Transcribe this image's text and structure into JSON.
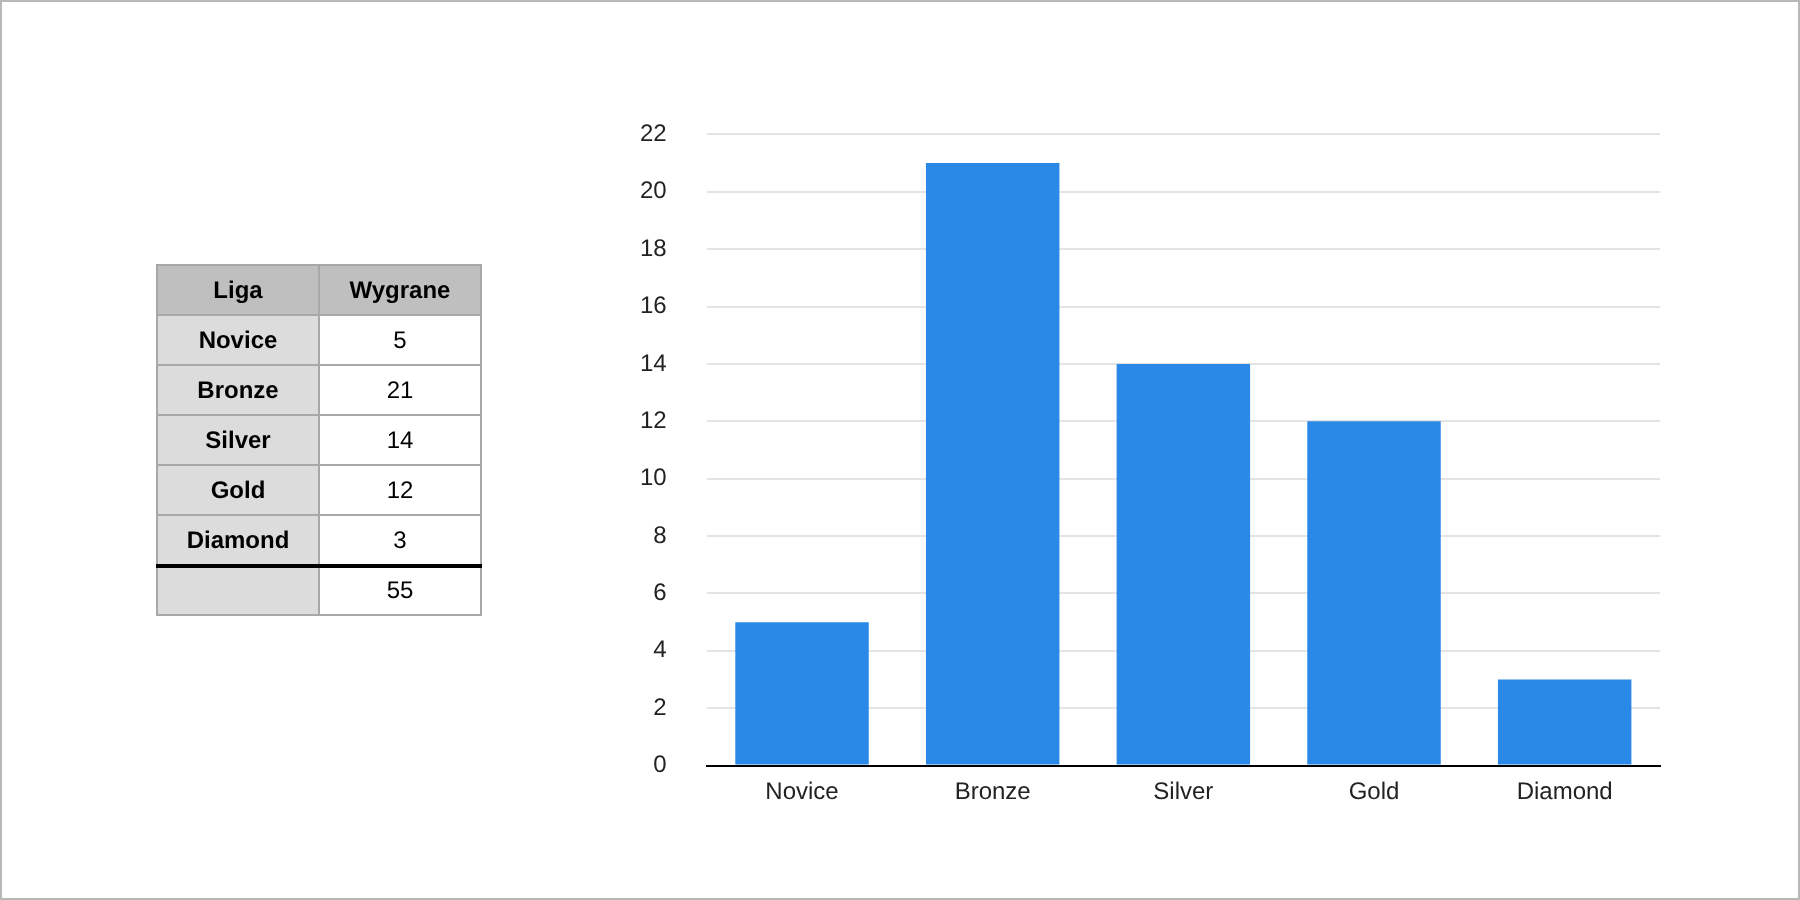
{
  "chart_data": {
    "type": "bar",
    "categories": [
      "Novice",
      "Bronze",
      "Silver",
      "Gold",
      "Diamond"
    ],
    "values": [
      5,
      21,
      14,
      12,
      3
    ],
    "color": "#2a88e6",
    "ylim": [
      0,
      22
    ],
    "yticks": [
      0,
      2,
      4,
      6,
      8,
      10,
      12,
      14,
      16,
      18,
      20,
      22
    ],
    "grid": "y",
    "legend": false,
    "annotations": [
      "Liga",
      "Wygrane",
      "Novice",
      "5",
      "Bronze",
      "21",
      "Silver",
      "14",
      "Gold",
      "12",
      "Diamond",
      "3",
      "55"
    ]
  }
}
